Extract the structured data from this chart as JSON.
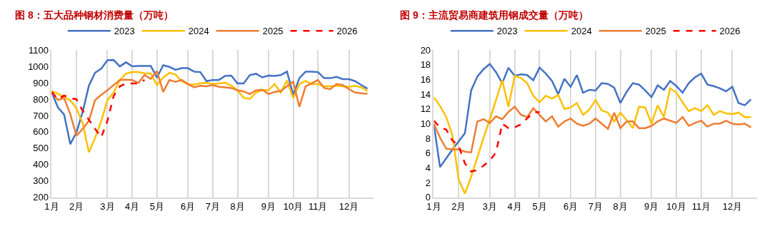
{
  "chart_data": [
    {
      "type": "line",
      "title": "图 8：五大品种钢材消费量（万吨）",
      "categories": [
        "1月",
        null,
        null,
        null,
        "2月",
        null,
        null,
        null,
        null,
        "3月",
        null,
        null,
        null,
        "4月",
        null,
        null,
        null,
        "5月",
        null,
        null,
        null,
        null,
        "6月",
        null,
        null,
        null,
        "7月",
        null,
        null,
        null,
        "8月",
        null,
        null,
        null,
        null,
        "9月",
        null,
        null,
        null,
        "10月",
        null,
        null,
        null,
        "11月",
        null,
        null,
        null,
        null,
        "12月",
        null,
        null,
        null
      ],
      "ylim": [
        200,
        1100
      ],
      "yticks": [
        200,
        300,
        400,
        500,
        600,
        700,
        800,
        900,
        1000,
        1100
      ],
      "grid": "x",
      "legend": "top",
      "marker": "none",
      "series": [
        {
          "name": "2023",
          "color": "#4472c4",
          "line_style": "solid",
          "values": [
            840,
            750,
            706,
            525,
            597,
            722,
            882,
            961,
            986,
            1037,
            1039,
            1000,
            1025,
            1000,
            1003,
            1003,
            1003,
            931,
            1007,
            997,
            979,
            989,
            989,
            968,
            965,
            910,
            917,
            917,
            942,
            944,
            896,
            896,
            947,
            955,
            933,
            944,
            942,
            947,
            968,
            826,
            928,
            968,
            968,
            965,
            928,
            928,
            936,
            922,
            922,
            910,
            886,
            864
          ]
        },
        {
          "name": "2024",
          "color": "#ffc000",
          "line_style": "solid",
          "values": [
            850,
            833,
            812,
            792,
            743,
            653,
            475,
            562,
            667,
            794,
            840,
            917,
            956,
            965,
            965,
            958,
            956,
            886,
            931,
            961,
            950,
            910,
            889,
            889,
            896,
            900,
            892,
            896,
            900,
            882,
            854,
            808,
            801,
            840,
            854,
            854,
            892,
            840,
            914,
            806,
            892,
            912,
            892,
            892,
            878,
            878,
            882,
            878,
            875,
            882,
            872,
            850
          ]
        },
        {
          "name": "2025",
          "color": "#ed7d31",
          "line_style": "solid",
          "values": [
            840,
            794,
            806,
            708,
            576,
            618,
            667,
            794,
            826,
            854,
            886,
            917,
            919,
            917,
            899,
            947,
            924,
            972,
            844,
            917,
            906,
            917,
            892,
            872,
            882,
            878,
            886,
            875,
            872,
            868,
            854,
            847,
            831,
            854,
            858,
            831,
            844,
            850,
            878,
            906,
            753,
            878,
            896,
            917,
            868,
            861,
            892,
            886,
            861,
            840,
            836,
            833
          ]
        },
        {
          "name": "2026",
          "color": "#ff0000",
          "line_style": "dashed",
          "values": [
            844,
            799,
            822,
            806,
            799,
            729,
            674,
            618,
            567,
            667,
            819,
            878,
            896,
            896,
            896,
            917,
            null,
            null,
            null,
            null,
            null,
            null,
            null,
            null,
            null,
            null,
            null,
            null,
            null,
            null,
            null,
            null,
            null,
            null,
            null,
            null,
            null,
            null,
            null,
            null,
            null,
            null,
            null,
            null,
            null,
            null,
            null,
            null,
            null,
            null,
            null,
            null
          ]
        }
      ]
    },
    {
      "type": "line",
      "title": "图 9：主流贸易商建筑用钢成交量（万吨）",
      "categories": [
        "1月",
        null,
        null,
        null,
        "2月",
        null,
        null,
        null,
        null,
        "3月",
        null,
        null,
        null,
        "4月",
        null,
        null,
        null,
        "5月",
        null,
        null,
        null,
        null,
        "6月",
        null,
        null,
        null,
        "7月",
        null,
        null,
        null,
        "8月",
        null,
        null,
        null,
        null,
        "9月",
        null,
        null,
        null,
        "10月",
        null,
        null,
        null,
        "11月",
        null,
        null,
        null,
        null,
        "12月",
        null,
        null,
        null
      ],
      "ylim": [
        0,
        20
      ],
      "yticks": [
        0,
        2,
        4,
        6,
        8,
        10,
        12,
        14,
        16,
        18,
        20
      ],
      "grid": "x",
      "legend": "top",
      "marker": "none",
      "series": [
        {
          "name": "2023",
          "color": "#4472c4",
          "line_style": "solid",
          "values": [
            9.9,
            4.1,
            5.3,
            6.5,
            7.6,
            8.7,
            14.5,
            16.4,
            17.4,
            18.1,
            17.0,
            15.5,
            17.6,
            16.5,
            16.7,
            16.6,
            15.9,
            17.6,
            16.8,
            15.8,
            14.0,
            16.1,
            15.0,
            16.6,
            14.2,
            14.6,
            14.5,
            15.5,
            15.4,
            14.9,
            12.8,
            14.3,
            15.5,
            15.3,
            14.5,
            13.6,
            15.2,
            14.6,
            15.8,
            15.1,
            14.2,
            15.5,
            16.3,
            16.8,
            15.3,
            15.1,
            14.8,
            14.4,
            15.0,
            12.8,
            12.5,
            13.3
          ]
        },
        {
          "name": "2024",
          "color": "#ffc000",
          "line_style": "solid",
          "values": [
            13.6,
            12.4,
            10.9,
            8.4,
            2.4,
            0.5,
            2.8,
            5.4,
            8.1,
            10.6,
            13.2,
            15.9,
            12.3,
            16.5,
            16.2,
            15.5,
            13.8,
            12.9,
            13.8,
            13.4,
            13.9,
            12.0,
            12.2,
            12.8,
            11.2,
            11.9,
            13.2,
            11.8,
            11.5,
            10.3,
            11.5,
            10.5,
            9.4,
            12.3,
            12.2,
            10.0,
            12.5,
            10.9,
            14.8,
            14.2,
            12.9,
            11.7,
            12.1,
            11.7,
            12.5,
            11.2,
            11.7,
            11.4,
            11.3,
            11.5,
            10.9,
            10.9
          ]
        },
        {
          "name": "2025",
          "color": "#ed7d31",
          "line_style": "solid",
          "values": [
            10.0,
            8.1,
            6.6,
            6.5,
            6.5,
            6.2,
            6.1,
            10.3,
            10.6,
            10.1,
            11.0,
            10.6,
            11.6,
            12.3,
            11.2,
            10.9,
            12.1,
            11.2,
            10.3,
            11.0,
            9.6,
            10.3,
            10.7,
            10.0,
            9.7,
            10.0,
            10.7,
            10.0,
            9.3,
            11.5,
            9.4,
            10.3,
            10.3,
            9.4,
            9.4,
            9.7,
            10.3,
            10.7,
            10.4,
            10.1,
            10.9,
            9.7,
            10.1,
            10.4,
            9.6,
            10.0,
            10.0,
            10.4,
            10.0,
            9.9,
            10.0,
            9.5
          ]
        },
        {
          "name": "2026",
          "color": "#ff0000",
          "line_style": "dashed",
          "values": [
            10.4,
            9.5,
            9.2,
            7.7,
            7.0,
            4.6,
            3.5,
            3.7,
            4.3,
            5.0,
            6.1,
            10.0,
            9.4,
            9.5,
            9.9,
            10.7,
            11.5,
            11.6,
            null,
            null,
            null,
            null,
            null,
            null,
            null,
            null,
            null,
            null,
            null,
            null,
            null,
            null,
            null,
            null,
            null,
            null,
            null,
            null,
            null,
            null,
            null,
            null,
            null,
            null,
            null,
            null,
            null,
            null,
            null,
            null,
            null,
            null
          ]
        }
      ]
    }
  ]
}
